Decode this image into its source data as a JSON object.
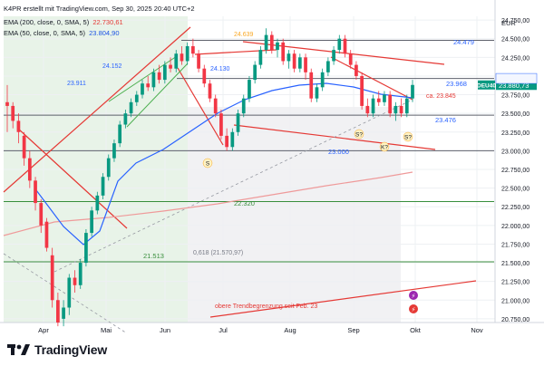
{
  "header": {
    "line1": "K4PR erstellt mit TradingView.com, Sep 30, 2025 20:40 UTC+2",
    "ema200_label": "EMA (200, close, 0, SMA, 5)",
    "ema200_value": "22.730,61",
    "ema50_label": "EMA (50, close, 0, SMA, 5)",
    "ema50_value": "23.804,90"
  },
  "currency": "EUR",
  "symbol_tag": "DEU40",
  "last_price_label": "23.880,73",
  "footer": {
    "brand": "TradingView"
  },
  "colors": {
    "up": "#089981",
    "down": "#f23645",
    "ema200": "#e53935",
    "ema50": "#2962ff",
    "support": "#388e3c",
    "trend": "#e53935",
    "grey": "#787b86"
  },
  "chart_data": {
    "type": "candlestick",
    "symbol": "DEU40",
    "ylim": [
      20700,
      24800
    ],
    "y_ticks": [
      24750,
      24500,
      24250,
      24000,
      23750,
      23500,
      23250,
      23000,
      22750,
      22500,
      22250,
      22000,
      21750,
      21500,
      21250,
      21000,
      20750
    ],
    "y_tick_labels": [
      "24.750,00",
      "24.500,00",
      "24.250,00",
      "24.000,00",
      "23.750,00",
      "23.500,00",
      "23.250,00",
      "23.000,00",
      "22.750,00",
      "22.500,00",
      "22.250,00",
      "22.000,00",
      "21.750,00",
      "21.500,00",
      "21.250,00",
      "21.000,00",
      "20.750,00"
    ],
    "x_ticks": [
      "Apr",
      "Mai",
      "Jun",
      "Jul",
      "Aug",
      "Sep",
      "Okt",
      "Nov"
    ],
    "grid": true,
    "levels": [
      {
        "value": 24479,
        "label": "24.479",
        "color": "#2962ff"
      },
      {
        "value": 23968,
        "label": "23.968",
        "color": "#2962ff"
      },
      {
        "value": 23476,
        "label": "23.476",
        "color": "#2962ff"
      },
      {
        "value": 23000,
        "label": "23.000",
        "color": "#2962ff"
      },
      {
        "value": 22320,
        "label": "22.320",
        "color": "#388e3c"
      },
      {
        "value": 21513,
        "label": "21.513",
        "color": "#388e3c"
      }
    ],
    "annotations": [
      {
        "text": "24.639",
        "kind": "high",
        "color": "#f9a825"
      },
      {
        "text": "24.152",
        "color": "#2962ff"
      },
      {
        "text": "23.911",
        "color": "#2962ff"
      },
      {
        "text": "24.130",
        "color": "#2962ff"
      },
      {
        "text": "ca. 23.845",
        "color": "#e53935"
      },
      {
        "text": "0,618 (21.570,97)",
        "color": "#787b86"
      },
      {
        "text": "obere Trendbegrenzung seit Feb. 23",
        "color": "#e53935"
      },
      {
        "text": "S",
        "kind": "marker"
      },
      {
        "text": "S?",
        "kind": "marker"
      },
      {
        "text": "K?",
        "kind": "marker"
      },
      {
        "text": "S?",
        "kind": "marker"
      }
    ],
    "candles": [
      [
        23650,
        23600,
        23880,
        23250
      ],
      [
        23600,
        23400,
        23650,
        23300
      ],
      [
        23400,
        23250,
        23500,
        23100
      ],
      [
        23200,
        22900,
        23250,
        22800
      ],
      [
        22900,
        22600,
        23000,
        22500
      ],
      [
        22600,
        22300,
        22650,
        22200
      ],
      [
        22300,
        22000,
        22350,
        21900
      ],
      [
        22050,
        21700,
        22100,
        21650
      ],
      [
        21600,
        21000,
        21700,
        20900
      ],
      [
        21000,
        20700,
        21100,
        20650
      ],
      [
        20750,
        20900,
        21000,
        20650
      ],
      [
        20900,
        21300,
        21350,
        20800
      ],
      [
        21300,
        21200,
        21400,
        21100
      ],
      [
        21200,
        21500,
        21550,
        21150
      ],
      [
        21500,
        21900,
        21950,
        21450
      ],
      [
        21900,
        22200,
        22250,
        21850
      ],
      [
        22200,
        22400,
        22450,
        22150
      ],
      [
        22400,
        22650,
        22700,
        22350
      ],
      [
        22650,
        22900,
        22950,
        22600
      ],
      [
        22900,
        23100,
        23150,
        22850
      ],
      [
        23100,
        23350,
        23400,
        23050
      ],
      [
        23350,
        23500,
        23550,
        23300
      ],
      [
        23500,
        23650,
        23700,
        23450
      ],
      [
        23650,
        23750,
        23800,
        23600
      ],
      [
        23750,
        23900,
        23950,
        23700
      ],
      [
        23900,
        23850,
        24000,
        23800
      ],
      [
        23850,
        24050,
        24100,
        23800
      ],
      [
        24050,
        23950,
        24150,
        23900
      ],
      [
        23950,
        24150,
        24200,
        23900
      ],
      [
        24150,
        24100,
        24250,
        24050
      ],
      [
        24100,
        24300,
        24350,
        24050
      ],
      [
        24300,
        24200,
        24400,
        24150
      ],
      [
        24200,
        24400,
        24450,
        24150
      ],
      [
        24400,
        24300,
        24500,
        24250
      ],
      [
        24300,
        24100,
        24350,
        24050
      ],
      [
        24100,
        23900,
        24150,
        23850
      ],
      [
        23900,
        23700,
        23950,
        23650
      ],
      [
        23700,
        23500,
        23750,
        23450
      ],
      [
        23500,
        23200,
        23550,
        23150
      ],
      [
        23200,
        23050,
        23300,
        23000
      ],
      [
        23050,
        23250,
        23300,
        23000
      ],
      [
        23250,
        23500,
        23550,
        23200
      ],
      [
        23500,
        23700,
        23750,
        23450
      ],
      [
        23700,
        23950,
        24000,
        23650
      ],
      [
        23950,
        24150,
        24200,
        23900
      ],
      [
        24150,
        24350,
        24400,
        24100
      ],
      [
        24350,
        24550,
        24639,
        24300
      ],
      [
        24550,
        24350,
        24600,
        24300
      ],
      [
        24350,
        24450,
        24500,
        24250
      ],
      [
        24450,
        24200,
        24500,
        24150
      ],
      [
        24200,
        24300,
        24350,
        24100
      ],
      [
        24300,
        24100,
        24350,
        24050
      ],
      [
        24100,
        24250,
        24300,
        24050
      ],
      [
        24250,
        24050,
        24300,
        23950
      ],
      [
        24050,
        23700,
        24100,
        23650
      ],
      [
        23700,
        23850,
        23900,
        23650
      ],
      [
        23850,
        24050,
        24100,
        23800
      ],
      [
        24050,
        24200,
        24250,
        24000
      ],
      [
        24200,
        24350,
        24400,
        24150
      ],
      [
        24350,
        24500,
        24550,
        24300
      ],
      [
        24500,
        24300,
        24550,
        24250
      ],
      [
        24300,
        24150,
        24350,
        24100
      ],
      [
        24150,
        24000,
        24200,
        23950
      ],
      [
        24000,
        23600,
        24050,
        23550
      ],
      [
        23600,
        23500,
        23700,
        23450
      ],
      [
        23500,
        23700,
        23750,
        23450
      ],
      [
        23700,
        23650,
        23800,
        23600
      ],
      [
        23650,
        23750,
        23800,
        23600
      ],
      [
        23750,
        23500,
        23800,
        23450
      ],
      [
        23500,
        23600,
        23650,
        23400
      ],
      [
        23600,
        23500,
        23700,
        23450
      ],
      [
        23500,
        23700,
        23750,
        23450
      ],
      [
        23700,
        23881,
        23950,
        23650
      ]
    ]
  }
}
